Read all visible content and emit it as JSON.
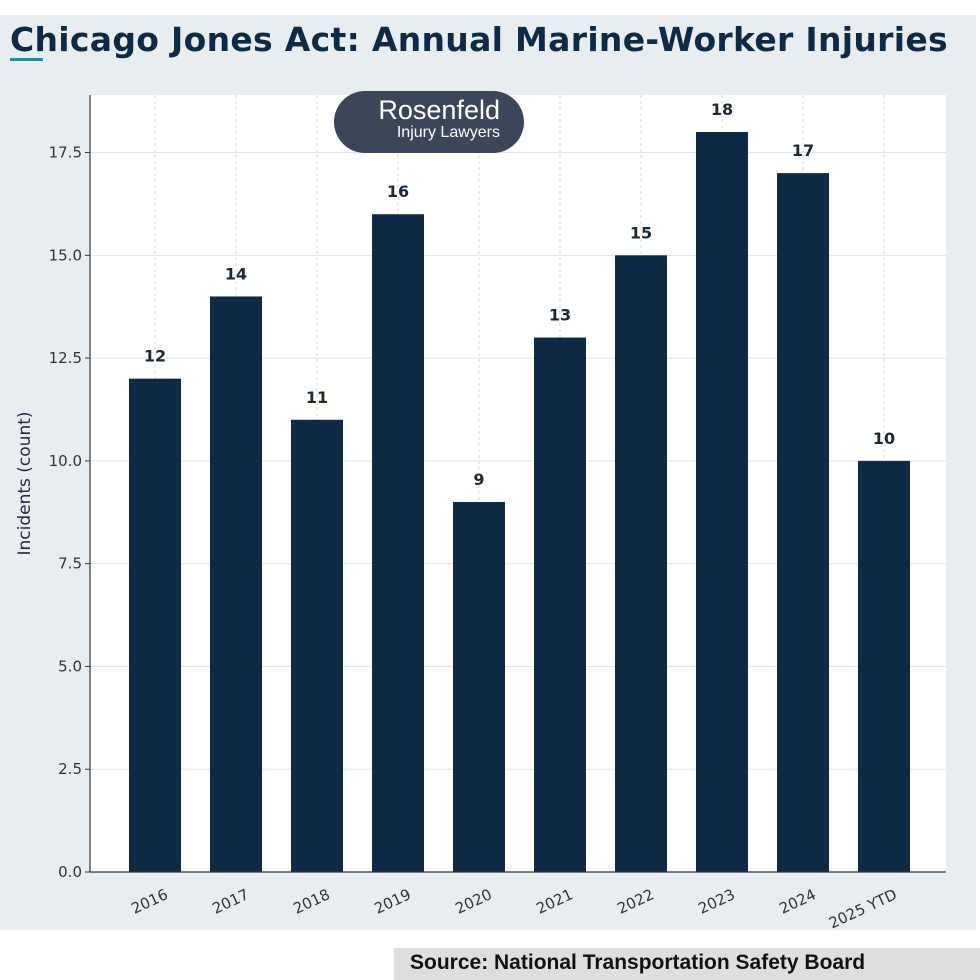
{
  "title": "Chicago Jones Act: Annual Marine-Worker Injuries",
  "logo": {
    "line1": "Rosenfeld",
    "line2": "Injury Lawyers"
  },
  "source": "Source: National Transportation Safety Board",
  "colors": {
    "bar": "#0f2a44",
    "background": "#e8edf2",
    "accent": "#2a8a9a"
  },
  "chart_data": {
    "type": "bar",
    "title": "Chicago Jones Act: Annual Marine-Worker Injuries",
    "xlabel": "",
    "ylabel": "Incidents (count)",
    "categories": [
      "2016",
      "2017",
      "2018",
      "2019",
      "2020",
      "2021",
      "2022",
      "2023",
      "2024",
      "2025 YTD"
    ],
    "values": [
      12,
      14,
      11,
      16,
      9,
      13,
      15,
      18,
      17,
      10
    ],
    "ylim": [
      0,
      18.9
    ],
    "yticks": [
      "0.0",
      "2.5",
      "5.0",
      "7.5",
      "10.0",
      "12.5",
      "15.0",
      "17.5"
    ],
    "grid": true,
    "data_labels": true
  }
}
